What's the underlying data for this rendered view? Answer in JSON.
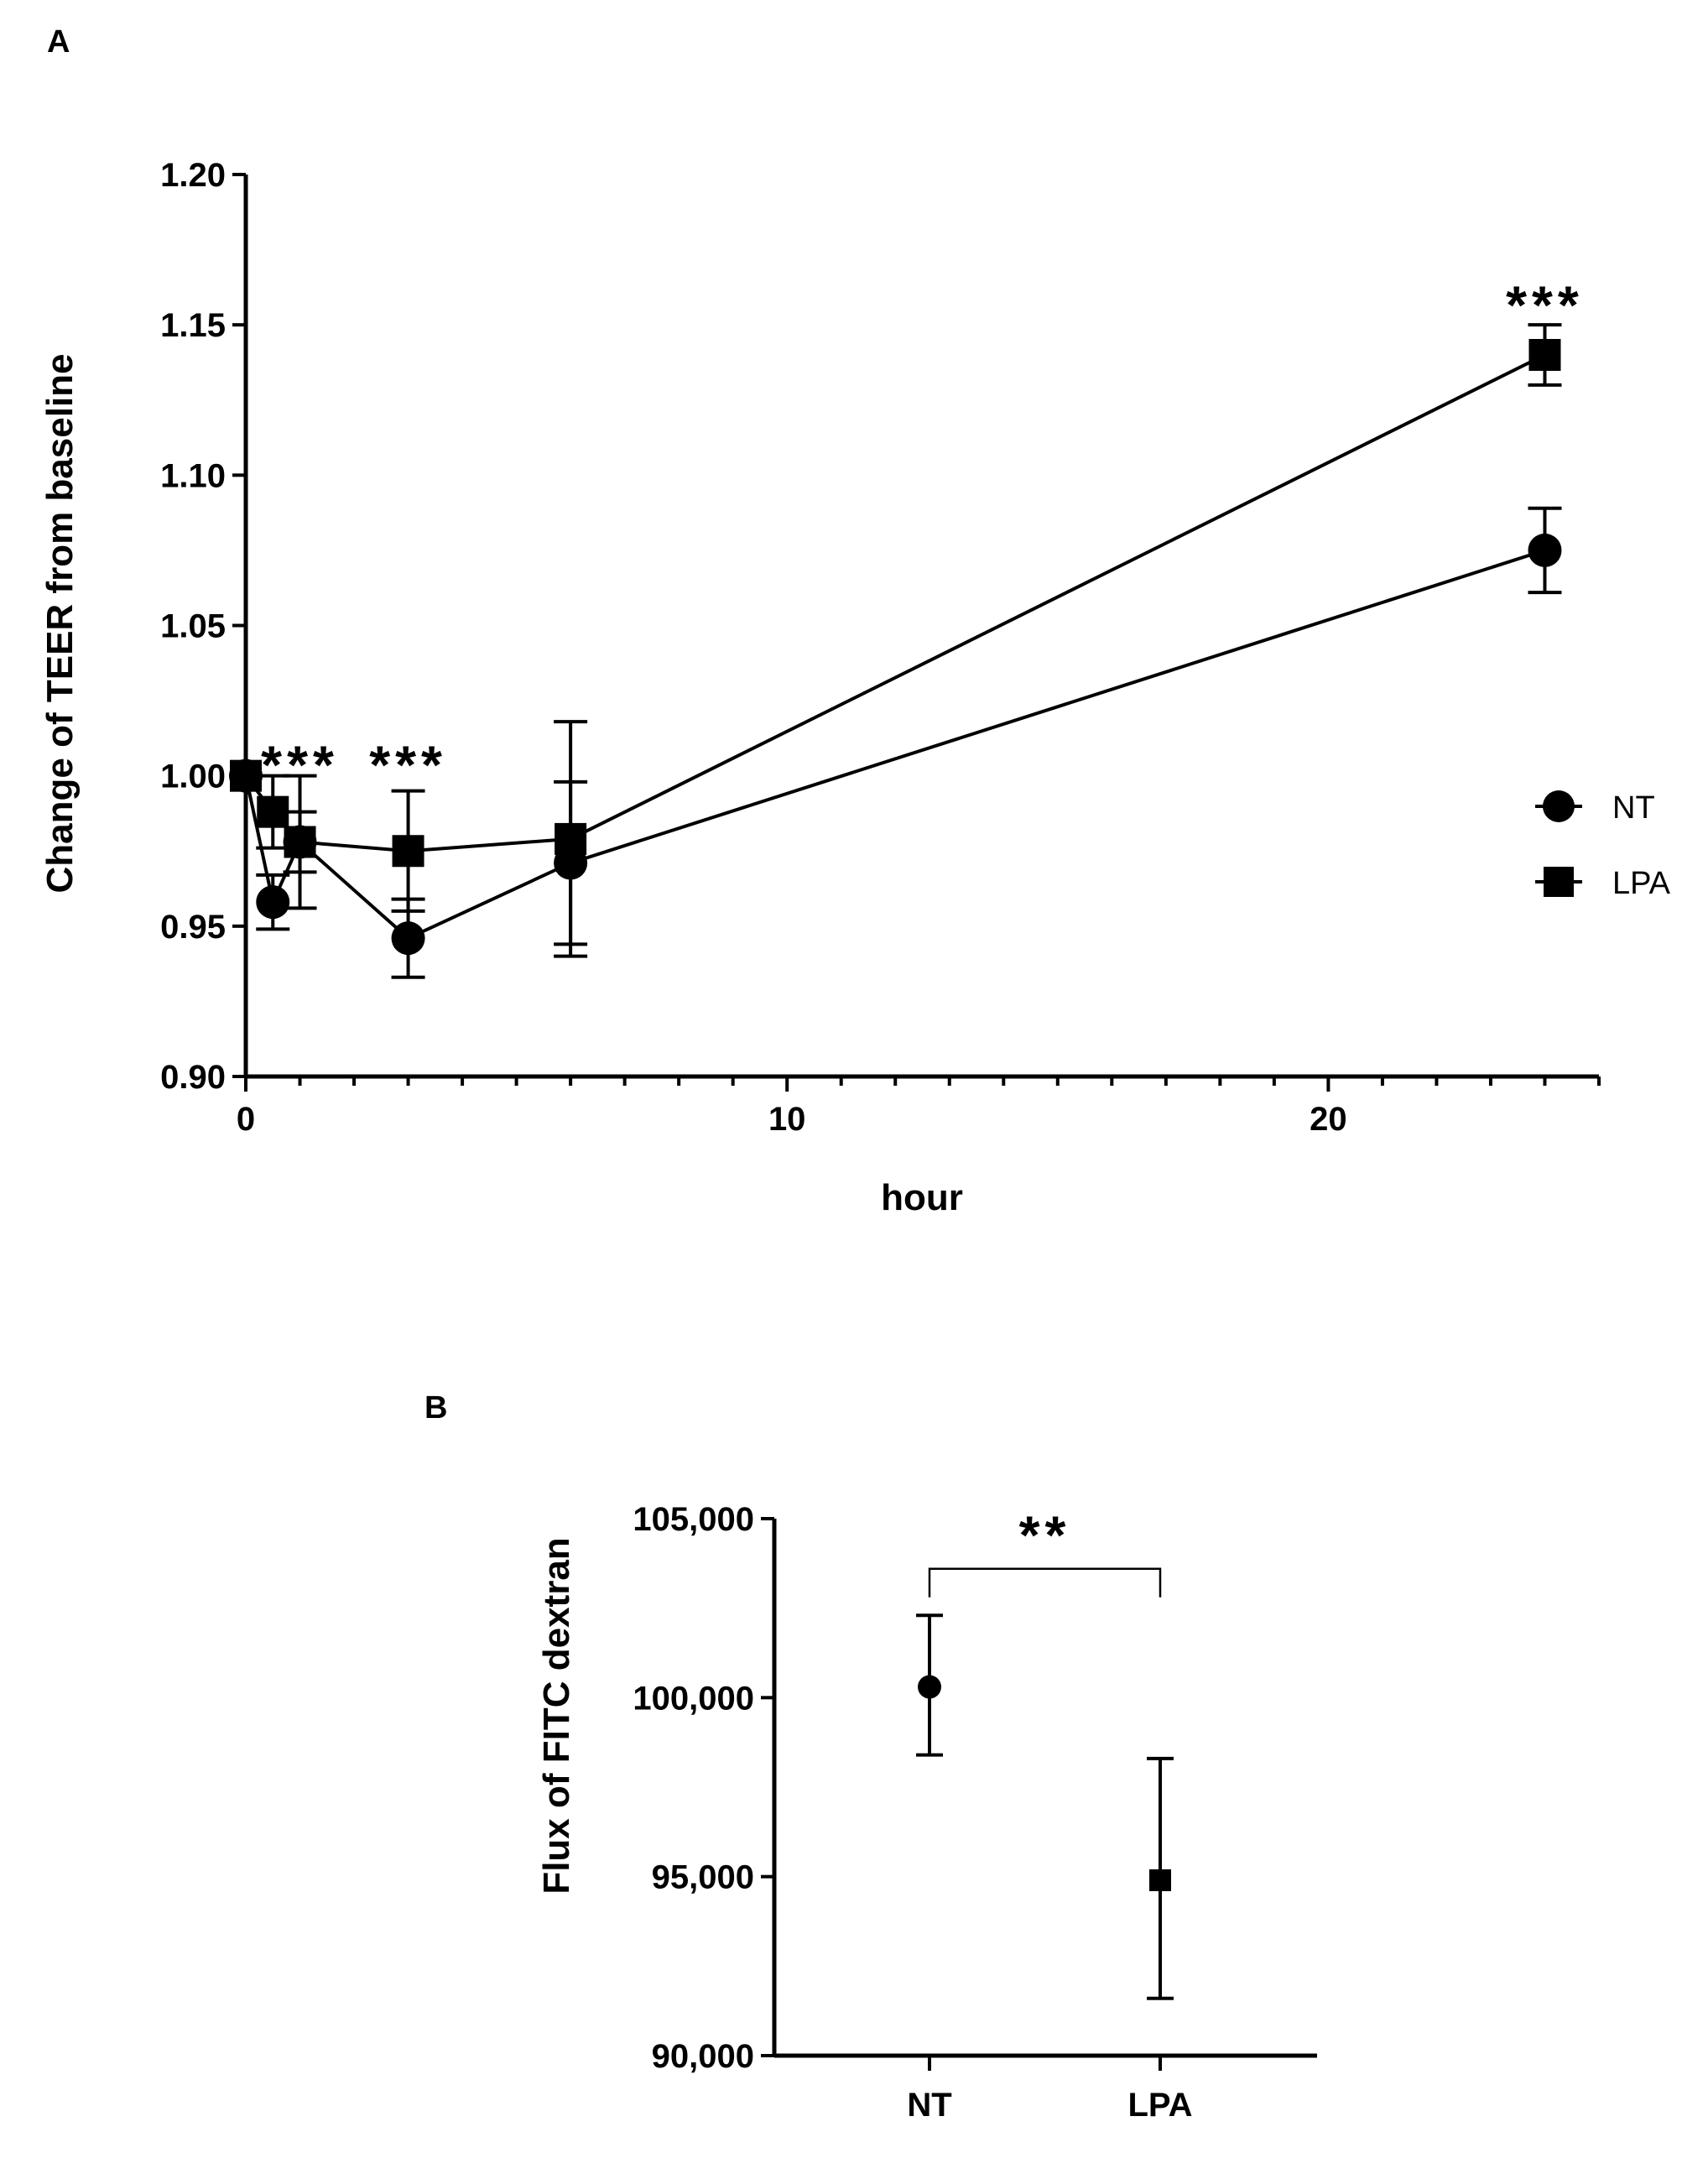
{
  "chart_data": [
    {
      "panel": "A",
      "type": "line",
      "xlabel": "hour",
      "ylabel": "Change of TEER from baseline",
      "xlim": [
        0,
        25
      ],
      "ylim": [
        0.9,
        1.2
      ],
      "x_ticks": [
        0,
        10,
        20
      ],
      "x_tick_labels": [
        "0",
        "10",
        "20"
      ],
      "y_ticks": [
        0.9,
        0.95,
        1.0,
        1.05,
        1.1,
        1.15,
        1.2
      ],
      "y_tick_labels": [
        "0.90",
        "0.95",
        "1.00",
        "1.05",
        "1.10",
        "1.15",
        "1.20"
      ],
      "legend_position": "right",
      "series": [
        {
          "name": "NT",
          "marker": "circle",
          "points": [
            {
              "x": 0,
              "y": 1.0,
              "err": 0.0
            },
            {
              "x": 0.5,
              "y": 0.958,
              "err": 0.009
            },
            {
              "x": 1,
              "y": 0.978,
              "err": 0.01
            },
            {
              "x": 3,
              "y": 0.946,
              "err": 0.013
            },
            {
              "x": 6,
              "y": 0.971,
              "err": 0.027
            },
            {
              "x": 24,
              "y": 1.075,
              "err": 0.014
            }
          ]
        },
        {
          "name": "LPA",
          "marker": "square",
          "points": [
            {
              "x": 0,
              "y": 1.0,
              "err": 0.0
            },
            {
              "x": 0.5,
              "y": 0.988,
              "err": 0.012
            },
            {
              "x": 1,
              "y": 0.978,
              "err": 0.022
            },
            {
              "x": 3,
              "y": 0.975,
              "err": 0.02
            },
            {
              "x": 6,
              "y": 0.979,
              "err": 0.039
            },
            {
              "x": 24,
              "y": 1.14,
              "err": 0.01
            }
          ]
        }
      ],
      "annotations": [
        {
          "text": "***",
          "x": 1.0,
          "y": 1.007
        },
        {
          "text": "***",
          "x": 3.0,
          "y": 1.007
        },
        {
          "text": "***",
          "x": 24.0,
          "y": 1.16
        }
      ]
    },
    {
      "panel": "B",
      "type": "scatter",
      "xlabel": "",
      "ylabel": "Flux of FITC dextran",
      "categories": [
        "NT",
        "LPA"
      ],
      "ylim": [
        90000,
        105000
      ],
      "y_ticks": [
        90000,
        95000,
        100000,
        105000
      ],
      "y_tick_labels": [
        "90,000",
        "95,000",
        "100,000",
        "105,000"
      ],
      "points": [
        {
          "category": "NT",
          "marker": "circle",
          "y": 100300,
          "err_low": 98400,
          "err_high": 102300
        },
        {
          "category": "LPA",
          "marker": "square",
          "y": 94900,
          "err_low": 91600,
          "err_high": 98300
        }
      ],
      "significance": {
        "text": "**",
        "between": [
          "NT",
          "LPA"
        ],
        "bracket_y": 103600
      }
    }
  ]
}
